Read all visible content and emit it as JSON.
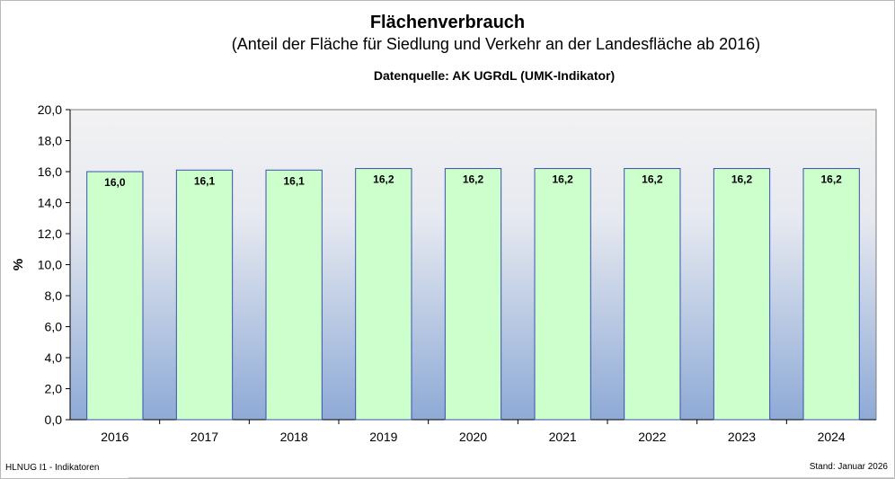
{
  "chart_data": {
    "type": "bar",
    "title": "Flächenverbrauch",
    "subtitle": "(Anteil der Fläche für Siedlung und Verkehr an der Landesfläche ab 2016)",
    "source": "Datenquelle: AK UGRdL (UMK-Indikator)",
    "xlabel": "",
    "ylabel": "%",
    "categories": [
      "2016",
      "2017",
      "2018",
      "2019",
      "2020",
      "2021",
      "2022",
      "2023",
      "2024"
    ],
    "values": [
      16.0,
      16.1,
      16.1,
      16.2,
      16.2,
      16.2,
      16.2,
      16.2,
      16.2
    ],
    "data_labels": [
      "16,0",
      "16,1",
      "16,1",
      "16,2",
      "16,2",
      "16,2",
      "16,2",
      "16,2",
      "16,2"
    ],
    "ylim": [
      0,
      20
    ],
    "yticks": [
      "0,0",
      "2,0",
      "4,0",
      "6,0",
      "8,0",
      "10,0",
      "12,0",
      "14,0",
      "16,0",
      "18,0",
      "20,0"
    ],
    "grid": false,
    "legend": "none",
    "colors": {
      "bar_fill": "#ccffcc",
      "bar_stroke": "#3a4fb0",
      "plot_top": "#f2f2f2",
      "plot_bottom": "#8eaad6"
    }
  },
  "footer": {
    "left": "HLNUG I1 - Indikatoren",
    "right": "Stand:  Januar 2026"
  }
}
